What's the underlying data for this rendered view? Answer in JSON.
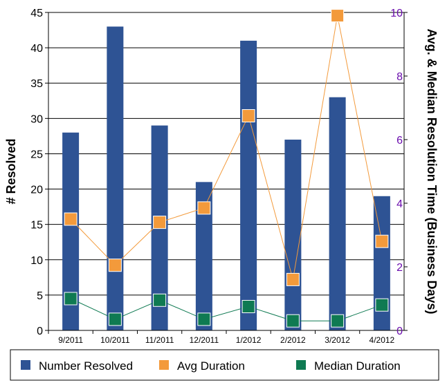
{
  "chart_data": {
    "type": "bar",
    "categories": [
      "9/2011",
      "10/2011",
      "11/2011",
      "12/2011",
      "1/2012",
      "2/2012",
      "3/2012",
      "4/2012"
    ],
    "series": [
      {
        "name": "Number Resolved",
        "type": "bar",
        "axis": "left",
        "color": "#2e5394",
        "values": [
          28,
          43,
          29,
          21,
          41,
          27,
          33,
          19
        ]
      },
      {
        "name": "Avg Duration",
        "type": "line",
        "axis": "right",
        "color": "#f39a3b",
        "values": [
          3.5,
          2.05,
          3.4,
          3.85,
          6.75,
          1.6,
          9.9,
          2.8
        ]
      },
      {
        "name": "Median Duration",
        "type": "line",
        "axis": "right",
        "color": "#0f7a52",
        "values": [
          1.0,
          0.35,
          0.95,
          0.35,
          0.75,
          0.3,
          0.3,
          0.8
        ]
      }
    ],
    "ylabel": "# Resolved",
    "ylabel_right": "Avg. & Median Resolution Time (Business Days)",
    "ylim": [
      0,
      45
    ],
    "yticks": [
      "0",
      "5",
      "10",
      "15",
      "20",
      "25",
      "30",
      "35",
      "40",
      "45"
    ],
    "ylim_right": [
      0,
      10
    ],
    "yticks_right": [
      "0",
      "2",
      "4",
      "6",
      "8",
      "10"
    ],
    "right_axis_color": "#6a0dad",
    "grid": true,
    "legend": "bottom"
  }
}
